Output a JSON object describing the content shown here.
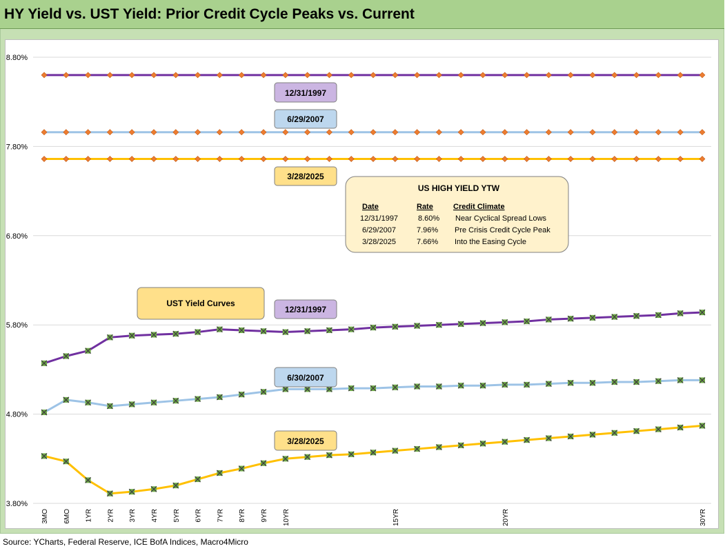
{
  "title": "HY Yield vs. UST Yield: Prior Credit Cycle Peaks vs. Current",
  "source": "Source: YCharts, Federal Reserve, ICE BofA Indices, Macro4Micro",
  "colors": {
    "s1997": "#7030a0",
    "s2007": "#9dc3e6",
    "s2025": "#ffc000",
    "hy_marker": "#ed7d31",
    "ust_marker": "#70ad47"
  },
  "labels": {
    "hy_1997": "12/31/1997",
    "hy_2007": "6/29/2007",
    "hy_2025": "3/28/2025",
    "ust_title": "UST  Yield Curves",
    "ust_1997": "12/31/1997",
    "ust_2007": "6/30/2007",
    "ust_2025": "3/28/2025"
  },
  "ytw_table": {
    "title": "US HIGH YIELD YTW",
    "headers": [
      "Date",
      "Rate",
      "Credit Climate"
    ],
    "rows": [
      [
        "12/31/1997",
        "8.60%",
        "Near Cyclical Spread Lows"
      ],
      [
        "6/29/2007",
        "7.96%",
        "Pre Crisis Credit Cycle Peak"
      ],
      [
        "3/28/2025",
        "7.66%",
        "Into the Easing Cycle"
      ]
    ]
  },
  "chart_data": {
    "type": "line",
    "x_ticks": [
      "3MO",
      "6MO",
      "1YR",
      "2YR",
      "3YR",
      "4YR",
      "5YR",
      "6YR",
      "7YR",
      "8YR",
      "9YR",
      "10YR",
      "",
      "",
      "",
      "",
      "15YR",
      "",
      "",
      "",
      "",
      "20YR",
      "",
      "",
      "",
      "",
      "",
      "",
      "",
      "",
      "30YR"
    ],
    "y_ticks": [
      "3.80%",
      "4.80%",
      "5.80%",
      "6.80%",
      "7.80%",
      "8.80%"
    ],
    "ylim": [
      3.8,
      8.8
    ],
    "series": [
      {
        "name": "12/31/1997",
        "group": "hy",
        "values": [
          8.6,
          8.6,
          8.6,
          8.6,
          8.6,
          8.6,
          8.6,
          8.6,
          8.6,
          8.6,
          8.6,
          8.6,
          8.6,
          8.6,
          8.6,
          8.6,
          8.6,
          8.6,
          8.6,
          8.6,
          8.6,
          8.6,
          8.6,
          8.6,
          8.6,
          8.6,
          8.6,
          8.6,
          8.6,
          8.6,
          8.6
        ]
      },
      {
        "name": "6/29/2007",
        "group": "hy",
        "values": [
          7.96,
          7.96,
          7.96,
          7.96,
          7.96,
          7.96,
          7.96,
          7.96,
          7.96,
          7.96,
          7.96,
          7.96,
          7.96,
          7.96,
          7.96,
          7.96,
          7.96,
          7.96,
          7.96,
          7.96,
          7.96,
          7.96,
          7.96,
          7.96,
          7.96,
          7.96,
          7.96,
          7.96,
          7.96,
          7.96,
          7.96
        ]
      },
      {
        "name": "3/28/2025",
        "group": "hy",
        "values": [
          7.66,
          7.66,
          7.66,
          7.66,
          7.66,
          7.66,
          7.66,
          7.66,
          7.66,
          7.66,
          7.66,
          7.66,
          7.66,
          7.66,
          7.66,
          7.66,
          7.66,
          7.66,
          7.66,
          7.66,
          7.66,
          7.66,
          7.66,
          7.66,
          7.66,
          7.66,
          7.66,
          7.66,
          7.66,
          7.66,
          7.66
        ]
      },
      {
        "name": "12/31/1997",
        "group": "ust",
        "values": [
          5.37,
          5.45,
          5.51,
          5.66,
          5.68,
          5.69,
          5.7,
          5.72,
          5.75,
          5.74,
          5.73,
          5.72,
          5.73,
          5.74,
          5.75,
          5.77,
          5.78,
          5.79,
          5.8,
          5.81,
          5.82,
          5.83,
          5.84,
          5.86,
          5.87,
          5.88,
          5.89,
          5.9,
          5.91,
          5.93,
          5.94
        ]
      },
      {
        "name": "6/30/2007",
        "group": "ust",
        "values": [
          4.82,
          4.96,
          4.93,
          4.89,
          4.91,
          4.93,
          4.95,
          4.97,
          4.99,
          5.02,
          5.05,
          5.08,
          5.08,
          5.08,
          5.09,
          5.09,
          5.1,
          5.11,
          5.11,
          5.12,
          5.12,
          5.13,
          5.13,
          5.14,
          5.15,
          5.15,
          5.16,
          5.16,
          5.17,
          5.18,
          5.18
        ]
      },
      {
        "name": "3/28/2025",
        "group": "ust",
        "values": [
          4.33,
          4.27,
          4.06,
          3.91,
          3.93,
          3.96,
          4.0,
          4.07,
          4.14,
          4.19,
          4.25,
          4.3,
          4.32,
          4.34,
          4.35,
          4.37,
          4.39,
          4.41,
          4.43,
          4.45,
          4.47,
          4.49,
          4.51,
          4.53,
          4.55,
          4.57,
          4.59,
          4.61,
          4.63,
          4.65,
          4.67
        ]
      }
    ]
  }
}
